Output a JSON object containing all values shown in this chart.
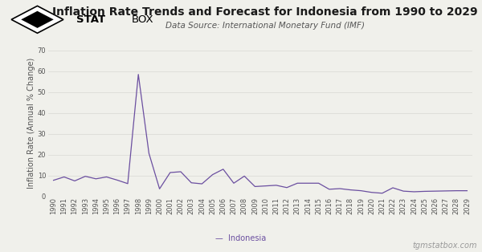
{
  "title": "Inflation Rate Trends and Forecast for Indonesia from 1990 to 2029",
  "subtitle": "Data Source: International Monetary Fund (IMF)",
  "ylabel": "Inflation Rate (Annual % Change)",
  "legend_label": "Indonesia",
  "footer_right": "tgmstatbox.com",
  "line_color": "#6B4FA0",
  "background_color": "#f0f0eb",
  "years": [
    1990,
    1991,
    1992,
    1993,
    1994,
    1995,
    1996,
    1997,
    1998,
    1999,
    2000,
    2001,
    2002,
    2003,
    2004,
    2005,
    2006,
    2007,
    2008,
    2009,
    2010,
    2011,
    2012,
    2013,
    2014,
    2015,
    2016,
    2017,
    2018,
    2019,
    2020,
    2021,
    2022,
    2023,
    2024,
    2025,
    2026,
    2027,
    2028,
    2029
  ],
  "values": [
    7.8,
    9.4,
    7.5,
    9.7,
    8.5,
    9.4,
    7.9,
    6.2,
    58.5,
    20.7,
    3.7,
    11.5,
    11.9,
    6.6,
    6.1,
    10.5,
    13.1,
    6.4,
    9.8,
    4.8,
    5.1,
    5.4,
    4.3,
    6.4,
    6.4,
    6.4,
    3.5,
    3.8,
    3.2,
    2.8,
    2.0,
    1.6,
    4.2,
    2.6,
    2.3,
    2.5,
    2.6,
    2.7,
    2.8,
    2.8
  ],
  "ylim": [
    0,
    70
  ],
  "yticks": [
    0,
    10,
    20,
    30,
    40,
    50,
    60,
    70
  ],
  "grid_color": "#d8d8d3",
  "title_fontsize": 10,
  "subtitle_fontsize": 7.5,
  "tick_fontsize": 6,
  "ylabel_fontsize": 7,
  "footer_fontsize": 7,
  "legend_fontsize": 7
}
